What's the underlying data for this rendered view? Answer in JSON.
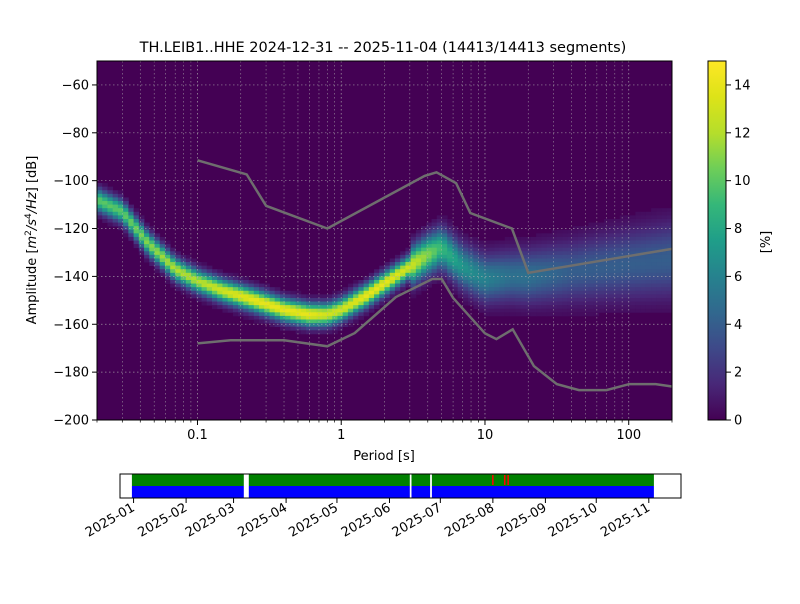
{
  "title": "TH.LEIB1..HHE   2024-12-31 -- 2025-11-04  (14413/14413 segments)",
  "chart_data": [
    {
      "type": "heatmap",
      "description_of_content": "probabilistic power spectral density histogram",
      "x_scale": "log",
      "xlabel": "Period [s]",
      "ylabel_parts": [
        "Amplitude [",
        "m",
        "2",
        "/s",
        "4",
        "/Hz",
        "] [dB]"
      ],
      "xlim": [
        0.02,
        200
      ],
      "ylim": [
        -200,
        -50
      ],
      "x_ticks": [
        0.1,
        1,
        10,
        100
      ],
      "x_tick_labels": [
        "0.1",
        "1",
        "10",
        "100"
      ],
      "y_ticks": [
        -60,
        -80,
        -100,
        -120,
        -140,
        -160,
        -180,
        -200
      ],
      "y_tick_labels": [
        "−60",
        "−80",
        "−100",
        "−120",
        "−140",
        "−160",
        "−180",
        "−200"
      ],
      "grid": true,
      "colormap": "viridis",
      "colorbar": {
        "label": "[%]",
        "range": [
          0,
          15
        ],
        "ticks": [
          0,
          2,
          4,
          6,
          8,
          10,
          12,
          14
        ],
        "tick_labels": [
          "0",
          "2",
          "4",
          "6",
          "8",
          "10",
          "12",
          "14"
        ]
      },
      "mode_curve": {
        "x": [
          0.02,
          0.03,
          0.045,
          0.07,
          0.1,
          0.15,
          0.25,
          0.4,
          0.6,
          0.8,
          1.0,
          1.5,
          2.0,
          3.0,
          4.0,
          5.0,
          7.0,
          10,
          15,
          20,
          40,
          100,
          200
        ],
        "y": [
          -108,
          -113,
          -126,
          -137,
          -142,
          -146,
          -150,
          -154,
          -156,
          -156,
          -154,
          -148,
          -143,
          -136,
          -131,
          -128,
          -136,
          -141,
          -140,
          -140,
          -138,
          -135,
          -133
        ],
        "peak_percent": [
          10,
          10,
          11,
          12,
          12,
          13,
          14,
          14,
          14,
          13,
          13,
          14,
          14,
          13,
          11,
          9,
          7,
          6,
          5,
          5,
          4,
          4,
          4
        ]
      },
      "high_noise_model": {
        "x": [
          0.1,
          0.22,
          0.3,
          0.8,
          3.8,
          4.6,
          6.3,
          7.9,
          15.4,
          20,
          200
        ],
        "y": [
          -91.5,
          -97.4,
          -110.5,
          -120,
          -98,
          -96.5,
          -101,
          -113.5,
          -120,
          -138.5,
          -128.5
        ]
      },
      "low_noise_model": {
        "x": [
          0.1,
          0.17,
          0.4,
          0.8,
          1.24,
          2.4,
          4.3,
          5.0,
          6.0,
          10,
          12,
          15.6,
          21.9,
          31.6,
          45,
          70,
          101,
          154,
          200
        ],
        "y": [
          -168,
          -166.7,
          -166.7,
          -169.2,
          -163.7,
          -148.6,
          -141.1,
          -141.1,
          -149,
          -163.8,
          -166.2,
          -162.1,
          -177.5,
          -185,
          -187.5,
          -187.5,
          -185,
          -185,
          -186
        ]
      }
    },
    {
      "type": "timeline",
      "description_of_content": "data coverage timeline",
      "xlim": [
        "2024-12-24",
        "2025-11-20"
      ],
      "x_ticks": [
        "2025-01-01",
        "2025-02-01",
        "2025-03-01",
        "2025-04-01",
        "2025-05-01",
        "2025-06-01",
        "2025-07-01",
        "2025-08-01",
        "2025-09-01",
        "2025-10-01",
        "2025-11-01"
      ],
      "x_tick_labels": [
        "2025-01",
        "2025-02",
        "2025-03",
        "2025-04",
        "2025-05",
        "2025-06",
        "2025-07",
        "2025-08",
        "2025-09",
        "2025-10",
        "2025-11"
      ],
      "coverage_periods": [
        [
          "2024-12-31",
          "2025-03-07"
        ],
        [
          "2025-03-10",
          "2025-06-13"
        ],
        [
          "2025-06-14",
          "2025-06-25"
        ],
        [
          "2025-06-26",
          "2025-11-04"
        ]
      ],
      "flag_dates": [
        "2025-08-01",
        "2025-08-08",
        "2025-08-10"
      ],
      "colors": {
        "data": "#008000",
        "used": "#0000ff",
        "flag": "#ff0000"
      }
    }
  ]
}
